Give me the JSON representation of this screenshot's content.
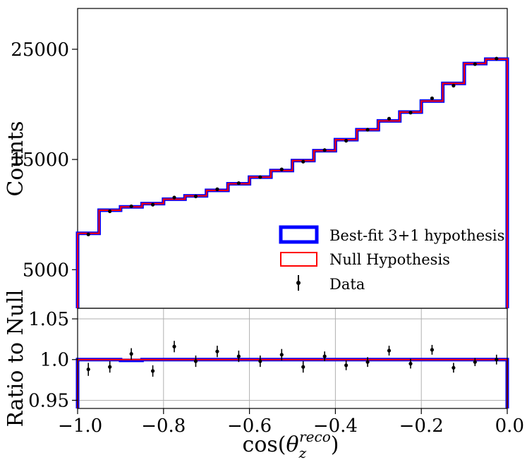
{
  "chart_data": [
    {
      "type": "histogram-step",
      "panel": "main",
      "ylabel": "Counts",
      "xlim": [
        -1.0,
        0.0
      ],
      "ylim": [
        1500,
        28700
      ],
      "yticks": [
        5000,
        15000,
        25000
      ],
      "ytick_labels": [
        "5000",
        "15000",
        "25000"
      ],
      "bin_edges": [
        -1.0,
        -0.95,
        -0.9,
        -0.85,
        -0.8,
        -0.75,
        -0.7,
        -0.65,
        -0.6,
        -0.55,
        -0.5,
        -0.45,
        -0.4,
        -0.35,
        -0.3,
        -0.25,
        -0.2,
        -0.15,
        -0.1,
        -0.05,
        0.0
      ],
      "series": [
        {
          "name": "Best-fit 3+1 hypothesis",
          "color": "#0000ff",
          "values": [
            8300,
            10400,
            10700,
            11000,
            11400,
            11700,
            12200,
            12800,
            13400,
            14000,
            14900,
            15800,
            16800,
            17700,
            18500,
            19300,
            20300,
            21900,
            23700,
            24100
          ]
        },
        {
          "name": "Null Hypothesis",
          "color": "#ff0000",
          "values": [
            8300,
            10400,
            10700,
            11000,
            11400,
            11700,
            12200,
            12800,
            13400,
            14000,
            14900,
            15800,
            16800,
            17700,
            18500,
            19300,
            20300,
            21900,
            23700,
            24100
          ]
        }
      ],
      "data_points": {
        "name": "Data",
        "x": [
          -0.975,
          -0.925,
          -0.875,
          -0.825,
          -0.775,
          -0.725,
          -0.675,
          -0.625,
          -0.575,
          -0.525,
          -0.475,
          -0.425,
          -0.375,
          -0.325,
          -0.275,
          -0.225,
          -0.175,
          -0.125,
          -0.075,
          -0.025
        ],
        "y": [
          8200,
          10300,
          10750,
          10900,
          11550,
          11650,
          12300,
          12850,
          13400,
          14100,
          14800,
          15850,
          16700,
          17700,
          18700,
          19250,
          20550,
          21700,
          23650,
          24150
        ]
      },
      "legend": {
        "position": "lower-right",
        "entries": [
          "Best-fit 3+1 hypothesis",
          "Null Hypothesis",
          "Data"
        ]
      }
    },
    {
      "type": "ratio",
      "panel": "ratio",
      "ylabel": "Ratio to Null",
      "xlabel": "cos(θ_z^reco)",
      "xlim": [
        -1.0,
        0.0
      ],
      "ylim": [
        0.94,
        1.063
      ],
      "xticks": [
        -1.0,
        -0.8,
        -0.6,
        -0.4,
        -0.2,
        0.0
      ],
      "xtick_labels": [
        "−1.0",
        "−0.8",
        "−0.6",
        "−0.4",
        "−0.2",
        "0.0"
      ],
      "yticks": [
        0.95,
        1.0,
        1.05
      ],
      "ytick_labels": [
        "0.95",
        "1.0",
        "1.05"
      ],
      "grid": true,
      "bin_edges": [
        -1.0,
        -0.95,
        -0.9,
        -0.85,
        -0.8,
        -0.75,
        -0.7,
        -0.65,
        -0.6,
        -0.55,
        -0.5,
        -0.45,
        -0.4,
        -0.35,
        -0.3,
        -0.25,
        -0.2,
        -0.15,
        -0.1,
        -0.05,
        0.0
      ],
      "series": [
        {
          "name": "Best-fit 3+1 hypothesis",
          "color": "#0000ff",
          "values": [
            1.0,
            1.0,
            0.999,
            1.0,
            1.0,
            1.0,
            1.0,
            1.0,
            1.0,
            1.0,
            1.0,
            1.0,
            1.0,
            1.0,
            1.0,
            1.0,
            1.0,
            1.0,
            1.0,
            1.0
          ]
        },
        {
          "name": "Null Hypothesis",
          "color": "#ff0000",
          "values": [
            1.0,
            1.0,
            1.0,
            1.0,
            1.0,
            1.0,
            1.0,
            1.0,
            1.0,
            1.0,
            1.0,
            1.0,
            1.0,
            1.0,
            1.0,
            1.0,
            1.0,
            1.0,
            1.0,
            1.0
          ]
        }
      ],
      "data_points": {
        "name": "Data",
        "x": [
          -0.975,
          -0.925,
          -0.875,
          -0.825,
          -0.775,
          -0.725,
          -0.675,
          -0.625,
          -0.575,
          -0.525,
          -0.475,
          -0.425,
          -0.375,
          -0.325,
          -0.275,
          -0.225,
          -0.175,
          -0.125,
          -0.075,
          -0.025
        ],
        "y": [
          0.988,
          0.991,
          1.007,
          0.986,
          1.016,
          0.998,
          1.01,
          1.004,
          0.998,
          1.006,
          0.991,
          1.004,
          0.993,
          0.997,
          1.011,
          0.995,
          1.012,
          0.99,
          0.997,
          1.0
        ],
        "err": [
          0.008,
          0.007,
          0.007,
          0.007,
          0.007,
          0.007,
          0.007,
          0.007,
          0.007,
          0.007,
          0.007,
          0.006,
          0.006,
          0.006,
          0.006,
          0.006,
          0.006,
          0.006,
          0.005,
          0.006
        ]
      }
    }
  ]
}
